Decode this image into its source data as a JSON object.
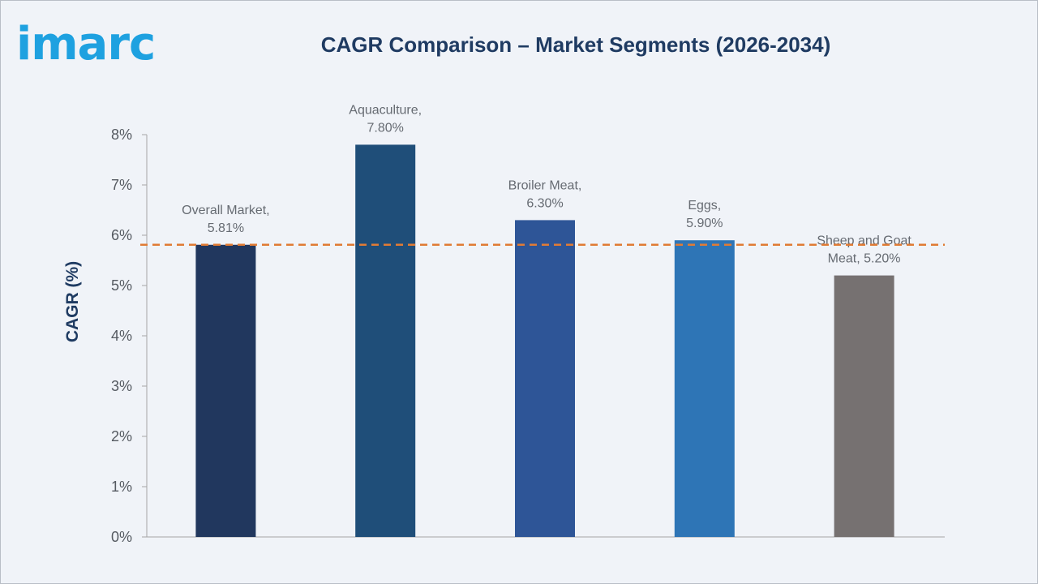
{
  "header": {
    "logo_text": "imarc",
    "title": "CAGR Comparison – Market Segments (2026-2034)"
  },
  "colors": {
    "background": "#f0f3f8",
    "title": "#1f3b62",
    "logo": "#1ea1e0",
    "reference_line": "#e07b35"
  },
  "chart_data": {
    "type": "bar",
    "title": "CAGR Comparison – Market Segments (2026-2034)",
    "xlabel": "",
    "ylabel": "CAGR (%)",
    "ylim": [
      0,
      8
    ],
    "yticks": [
      0,
      1,
      2,
      3,
      4,
      5,
      6,
      7,
      8
    ],
    "ytick_labels": [
      "0%",
      "1%",
      "2%",
      "3%",
      "4%",
      "5%",
      "6%",
      "7%",
      "8%"
    ],
    "categories": [
      "Overall Market",
      "Aquaculture",
      "Broiler Meat",
      "Eggs",
      "Sheep and Goat Meat"
    ],
    "values": [
      5.81,
      7.8,
      6.3,
      5.9,
      5.2
    ],
    "bar_colors": [
      "#21375e",
      "#1f4e79",
      "#2e5597",
      "#2e75b6",
      "#767171"
    ],
    "data_labels": [
      [
        "Overall Market,",
        "5.81%"
      ],
      [
        "Aquaculture,",
        "7.80%"
      ],
      [
        "Broiler Meat,",
        "6.30%"
      ],
      [
        "Eggs,",
        "5.90%"
      ],
      [
        "Sheep and Goat",
        "Meat, 5.20%"
      ]
    ],
    "reference_line": {
      "value": 5.81,
      "style": "dashed"
    },
    "grid": false,
    "legend": "none"
  }
}
